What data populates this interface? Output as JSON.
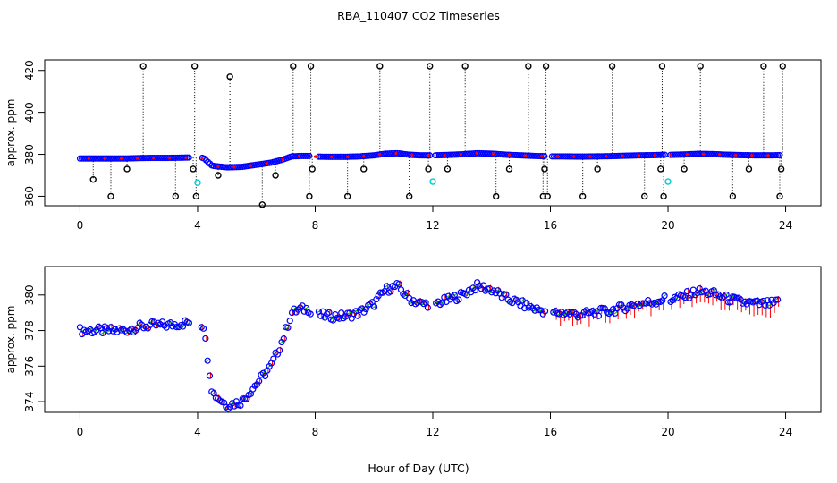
{
  "title": "RBA_110407  CO2 Timeseries",
  "xlabel": "Hour of Day (UTC)",
  "chart_data": [
    {
      "type": "scatter",
      "name": "top-panel",
      "ylabel": "approx. ppm",
      "xlim": [
        -1.2,
        25.2
      ],
      "ylim": [
        355.5,
        425
      ],
      "xticks": [
        0,
        4,
        8,
        12,
        16,
        20,
        24
      ],
      "yticks": [
        360,
        380,
        400,
        420
      ],
      "x_tick_labels": [
        "0",
        "4",
        "8",
        "12",
        "16",
        "20",
        "24"
      ],
      "y_tick_labels": [
        "360",
        "380",
        "400",
        "420"
      ],
      "series": [
        {
          "name": "co2",
          "color": "#0000ff",
          "marker": "circle",
          "x": [
            0.0,
            0.5,
            1.0,
            1.5,
            2.0,
            2.5,
            3.0,
            3.5,
            3.8,
            4.2,
            4.5,
            5.0,
            5.5,
            6.0,
            6.5,
            6.9,
            7.2,
            7.5,
            7.8,
            8.0,
            8.5,
            9.0,
            9.5,
            10.0,
            10.4,
            10.8,
            11.2,
            11.6,
            12.0,
            12.5,
            13.0,
            13.5,
            14.0,
            14.5,
            15.0,
            15.5,
            15.8,
            16.0,
            16.5,
            17.0,
            17.5,
            18.0,
            18.5,
            19.0,
            19.5,
            19.9,
            20.0,
            20.5,
            21.0,
            21.5,
            22.0,
            22.5,
            23.0,
            23.5,
            23.8
          ],
          "y": [
            378,
            378,
            378,
            378,
            378.2,
            378.3,
            378.3,
            378.4,
            378.5,
            378.3,
            374.5,
            373.8,
            374,
            375,
            376,
            377.5,
            379,
            379.2,
            379.2,
            378.9,
            378.8,
            378.8,
            379,
            379.5,
            380.3,
            380.5,
            379.8,
            379.5,
            379.5,
            379.7,
            380,
            380.5,
            380.3,
            379.8,
            379.5,
            379.2,
            379.1,
            379,
            379,
            378.9,
            379,
            379.1,
            379.3,
            379.5,
            379.6,
            379.8,
            379.7,
            379.9,
            380.2,
            380.1,
            379.8,
            379.6,
            379.5,
            379.5,
            379.6
          ]
        },
        {
          "name": "flagged-spikes",
          "color": "#000000",
          "marker": "circle",
          "x": [
            0.45,
            1.05,
            1.6,
            2.15,
            3.25,
            3.85,
            3.9,
            3.95,
            4.7,
            5.1,
            6.2,
            6.65,
            7.25,
            7.8,
            7.85,
            7.9,
            9.1,
            9.65,
            10.2,
            11.2,
            11.85,
            11.9,
            12.5,
            13.1,
            14.15,
            14.6,
            15.25,
            15.75,
            15.8,
            15.85,
            15.9,
            17.1,
            17.6,
            18.1,
            19.2,
            19.75,
            19.8,
            19.85,
            20.55,
            21.1,
            22.2,
            22.75,
            23.25,
            23.8,
            23.85,
            23.9
          ],
          "y": [
            368,
            360,
            373,
            422,
            360,
            373,
            422,
            360,
            370,
            417,
            356,
            370,
            422,
            360,
            422,
            373,
            360,
            373,
            422,
            360,
            373,
            422,
            373,
            422,
            360,
            373,
            422,
            360,
            373,
            422,
            360,
            360,
            373,
            422,
            360,
            373,
            422,
            360,
            373,
            422,
            360,
            373,
            422,
            360,
            373,
            422
          ]
        },
        {
          "name": "calibration",
          "color": "#00cccc",
          "marker": "circle",
          "x": [
            4.0,
            12.0,
            20.0
          ],
          "y": [
            366.5,
            367,
            367
          ]
        }
      ]
    },
    {
      "type": "scatter",
      "name": "bottom-panel",
      "ylabel": "approx. ppm",
      "xlim": [
        -1.2,
        25.2
      ],
      "ylim": [
        373.4,
        381.6
      ],
      "xticks": [
        0,
        4,
        8,
        12,
        16,
        20,
        24
      ],
      "yticks": [
        374,
        376,
        378,
        380
      ],
      "x_tick_labels": [
        "0",
        "4",
        "8",
        "12",
        "16",
        "20",
        "24"
      ],
      "y_tick_labels": [
        "374",
        "376",
        "378",
        "380"
      ],
      "series": [
        {
          "name": "co2",
          "color": "#0000ff",
          "marker": "circle",
          "x": [
            0.0,
            0.5,
            1.0,
            1.5,
            2.0,
            2.5,
            3.0,
            3.5,
            3.8,
            4.2,
            4.5,
            5.0,
            5.5,
            6.0,
            6.5,
            6.9,
            7.2,
            7.5,
            7.8,
            8.0,
            8.5,
            9.0,
            9.5,
            10.0,
            10.4,
            10.8,
            11.2,
            11.6,
            12.0,
            12.5,
            13.0,
            13.5,
            14.0,
            14.5,
            15.0,
            15.5,
            15.8,
            16.0,
            16.5,
            17.0,
            17.5,
            18.0,
            18.5,
            19.0,
            19.5,
            19.9,
            20.0,
            20.5,
            21.0,
            21.5,
            22.0,
            22.5,
            23.0,
            23.5,
            23.8
          ],
          "y": [
            378,
            378,
            378,
            378,
            378.2,
            378.3,
            378.3,
            378.4,
            378.5,
            378.3,
            374.5,
            373.8,
            374,
            375,
            376,
            377.5,
            379,
            379.2,
            379.2,
            378.9,
            378.8,
            378.8,
            379,
            379.5,
            380.3,
            380.5,
            379.8,
            379.5,
            379.5,
            379.7,
            380,
            380.5,
            380.3,
            379.8,
            379.5,
            379.2,
            379.1,
            379,
            379,
            378.9,
            379,
            379.1,
            379.3,
            379.5,
            379.6,
            379.8,
            379.7,
            379.9,
            380.2,
            380.1,
            379.8,
            379.6,
            379.5,
            379.5,
            379.6
          ]
        },
        {
          "name": "green-markers",
          "color": "#00bb00",
          "marker": "tick"
        },
        {
          "name": "red-markers",
          "color": "#ff0000",
          "marker": "tick"
        }
      ]
    }
  ]
}
